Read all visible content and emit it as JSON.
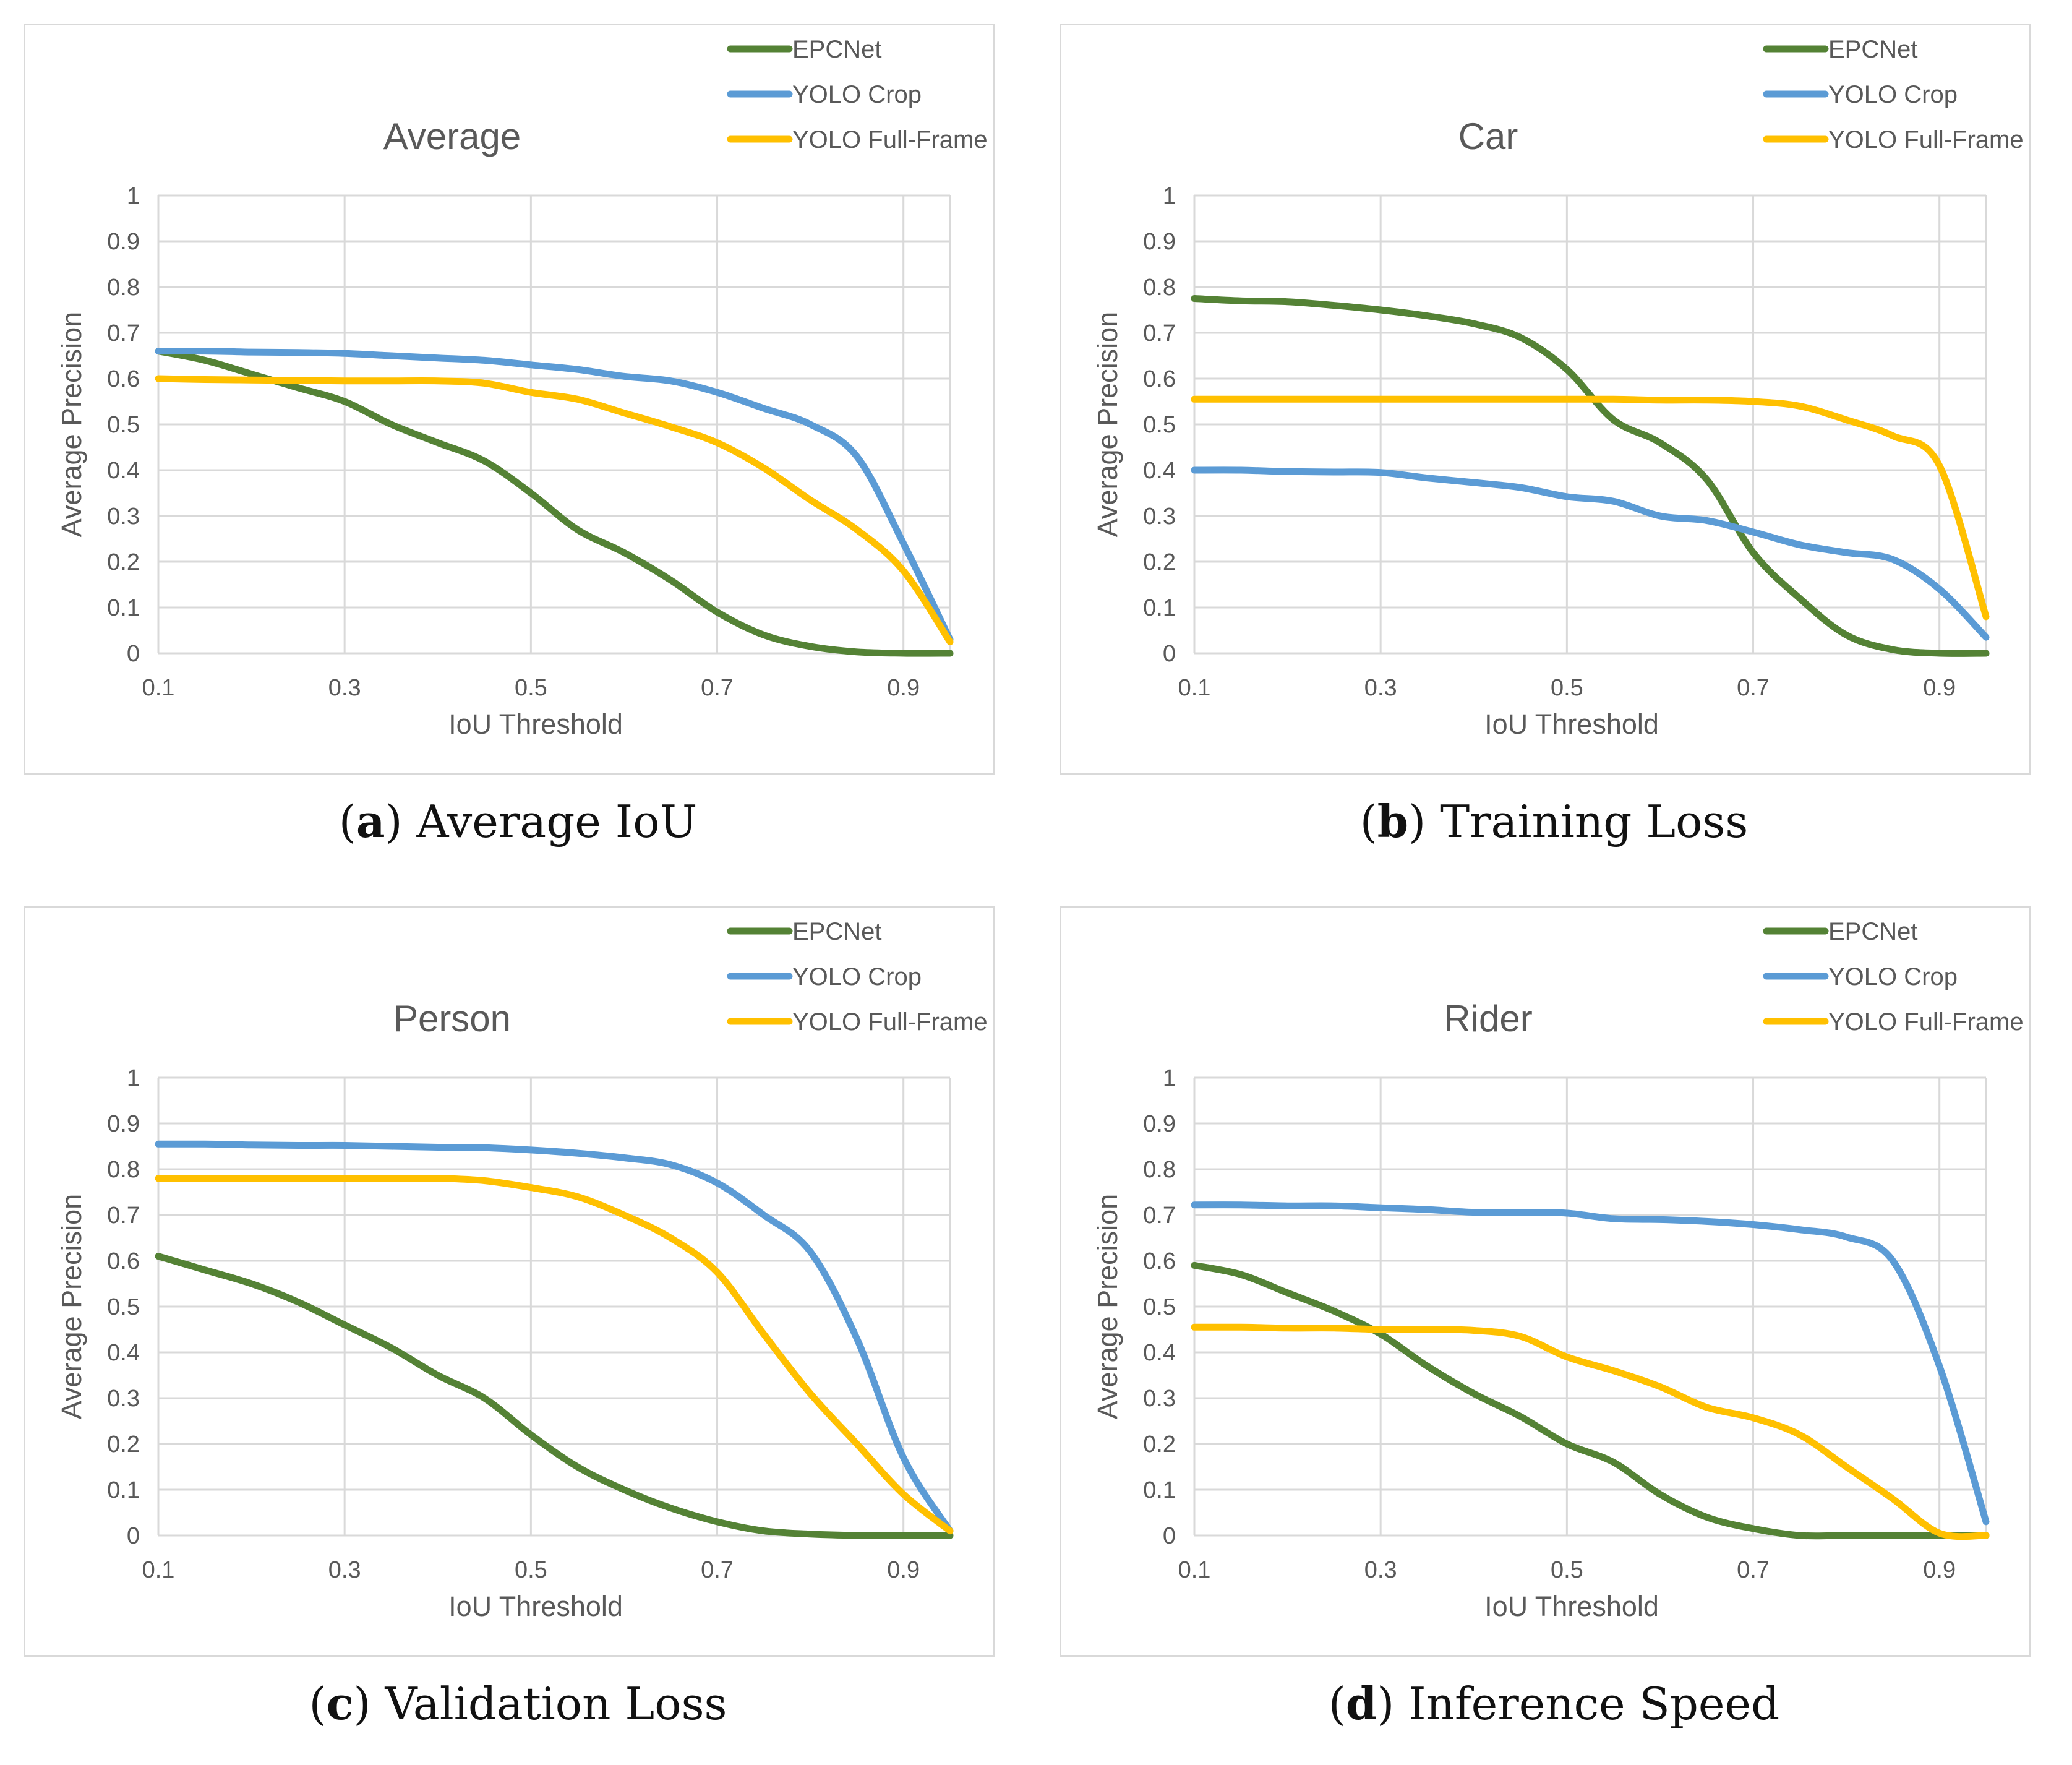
{
  "colors": {
    "EPCNet": "#548235",
    "YOLO Crop": "#5b9bd5",
    "YOLO Full-Frame": "#ffc000",
    "grid": "#d9d9d9",
    "text": "#595959"
  },
  "panels": [
    {
      "letter": "a",
      "caption": "Average IoU"
    },
    {
      "letter": "b",
      "caption": "Training Loss"
    },
    {
      "letter": "c",
      "caption": "Validation Loss"
    },
    {
      "letter": "d",
      "caption": "Inference Speed"
    }
  ],
  "chart_data": [
    {
      "type": "line",
      "title": "Average",
      "xlabel": "IoU Threshold",
      "ylabel": "Average Precision",
      "xlim": [
        0.1,
        0.95
      ],
      "ylim": [
        0,
        1
      ],
      "xticks": [
        "0.1",
        "0.3",
        "0.5",
        "0.7",
        "0.9"
      ],
      "yticks": [
        "0",
        "0.1",
        "0.2",
        "0.3",
        "0.4",
        "0.5",
        "0.6",
        "0.7",
        "0.8",
        "0.9",
        "1"
      ],
      "legend": "top-right",
      "x": [
        0.1,
        0.15,
        0.2,
        0.25,
        0.3,
        0.35,
        0.4,
        0.45,
        0.5,
        0.55,
        0.6,
        0.65,
        0.7,
        0.75,
        0.8,
        0.85,
        0.9,
        0.95
      ],
      "series": [
        {
          "name": "EPCNet",
          "values": [
            0.66,
            0.64,
            0.61,
            0.58,
            0.55,
            0.5,
            0.46,
            0.42,
            0.35,
            0.27,
            0.22,
            0.16,
            0.09,
            0.04,
            0.015,
            0.003,
            0.0,
            0.0
          ]
        },
        {
          "name": "YOLO Crop",
          "values": [
            0.66,
            0.66,
            0.658,
            0.657,
            0.655,
            0.65,
            0.645,
            0.64,
            0.63,
            0.62,
            0.605,
            0.595,
            0.57,
            0.535,
            0.5,
            0.43,
            0.24,
            0.03
          ]
        },
        {
          "name": "YOLO Full-Frame",
          "values": [
            0.6,
            0.598,
            0.597,
            0.596,
            0.595,
            0.595,
            0.595,
            0.59,
            0.57,
            0.555,
            0.525,
            0.495,
            0.46,
            0.405,
            0.335,
            0.27,
            0.18,
            0.025
          ]
        }
      ]
    },
    {
      "type": "line",
      "title": "Car",
      "xlabel": "IoU Threshold",
      "ylabel": "Average Precision",
      "xlim": [
        0.1,
        0.95
      ],
      "ylim": [
        0,
        1
      ],
      "xticks": [
        "0.1",
        "0.3",
        "0.5",
        "0.7",
        "0.9"
      ],
      "yticks": [
        "0",
        "0.1",
        "0.2",
        "0.3",
        "0.4",
        "0.5",
        "0.6",
        "0.7",
        "0.8",
        "0.9",
        "1"
      ],
      "legend": "top-right",
      "x": [
        0.1,
        0.15,
        0.2,
        0.25,
        0.3,
        0.35,
        0.4,
        0.45,
        0.5,
        0.55,
        0.6,
        0.65,
        0.7,
        0.75,
        0.8,
        0.85,
        0.9,
        0.95
      ],
      "series": [
        {
          "name": "EPCNet",
          "values": [
            0.775,
            0.77,
            0.768,
            0.76,
            0.75,
            0.737,
            0.72,
            0.69,
            0.62,
            0.51,
            0.46,
            0.38,
            0.22,
            0.12,
            0.04,
            0.008,
            0.0,
            0.0
          ]
        },
        {
          "name": "YOLO Crop",
          "values": [
            0.4,
            0.4,
            0.397,
            0.396,
            0.395,
            0.383,
            0.373,
            0.362,
            0.342,
            0.332,
            0.3,
            0.29,
            0.265,
            0.237,
            0.22,
            0.205,
            0.14,
            0.035
          ]
        },
        {
          "name": "YOLO Full-Frame",
          "values": [
            0.555,
            0.555,
            0.555,
            0.555,
            0.555,
            0.555,
            0.555,
            0.555,
            0.555,
            0.555,
            0.553,
            0.553,
            0.55,
            0.54,
            0.51,
            0.475,
            0.41,
            0.08
          ]
        }
      ]
    },
    {
      "type": "line",
      "title": "Person",
      "xlabel": "IoU Threshold",
      "ylabel": "Average Precision",
      "xlim": [
        0.1,
        0.95
      ],
      "ylim": [
        0,
        1
      ],
      "xticks": [
        "0.1",
        "0.3",
        "0.5",
        "0.7",
        "0.9"
      ],
      "yticks": [
        "0",
        "0.1",
        "0.2",
        "0.3",
        "0.4",
        "0.5",
        "0.6",
        "0.7",
        "0.8",
        "0.9",
        "1"
      ],
      "legend": "top-right",
      "x": [
        0.1,
        0.15,
        0.2,
        0.25,
        0.3,
        0.35,
        0.4,
        0.45,
        0.5,
        0.55,
        0.6,
        0.65,
        0.7,
        0.75,
        0.8,
        0.85,
        0.9,
        0.95
      ],
      "series": [
        {
          "name": "EPCNet",
          "values": [
            0.61,
            0.58,
            0.55,
            0.51,
            0.46,
            0.41,
            0.35,
            0.3,
            0.22,
            0.15,
            0.1,
            0.06,
            0.03,
            0.01,
            0.003,
            0.0,
            0.0,
            0.0
          ]
        },
        {
          "name": "YOLO Crop",
          "values": [
            0.855,
            0.855,
            0.853,
            0.852,
            0.852,
            0.85,
            0.848,
            0.847,
            0.842,
            0.835,
            0.825,
            0.81,
            0.77,
            0.7,
            0.62,
            0.43,
            0.17,
            0.01
          ]
        },
        {
          "name": "YOLO Full-Frame",
          "values": [
            0.78,
            0.78,
            0.78,
            0.78,
            0.78,
            0.78,
            0.78,
            0.775,
            0.76,
            0.74,
            0.7,
            0.65,
            0.575,
            0.44,
            0.31,
            0.2,
            0.09,
            0.01
          ]
        }
      ]
    },
    {
      "type": "line",
      "title": "Rider",
      "xlabel": "IoU Threshold",
      "ylabel": "Average Precision",
      "xlim": [
        0.1,
        0.95
      ],
      "ylim": [
        0,
        1
      ],
      "xticks": [
        "0.1",
        "0.3",
        "0.5",
        "0.7",
        "0.9"
      ],
      "yticks": [
        "0",
        "0.1",
        "0.2",
        "0.3",
        "0.4",
        "0.5",
        "0.6",
        "0.7",
        "0.8",
        "0.9",
        "1"
      ],
      "legend": "top-right",
      "x": [
        0.1,
        0.15,
        0.2,
        0.25,
        0.3,
        0.35,
        0.4,
        0.45,
        0.5,
        0.55,
        0.6,
        0.65,
        0.7,
        0.75,
        0.8,
        0.85,
        0.9,
        0.95
      ],
      "series": [
        {
          "name": "EPCNet",
          "values": [
            0.59,
            0.57,
            0.53,
            0.49,
            0.44,
            0.37,
            0.31,
            0.26,
            0.2,
            0.16,
            0.09,
            0.04,
            0.015,
            0.0,
            0.0,
            0.0,
            0.0,
            0.0
          ]
        },
        {
          "name": "YOLO Crop",
          "values": [
            0.722,
            0.722,
            0.72,
            0.72,
            0.716,
            0.712,
            0.706,
            0.706,
            0.704,
            0.692,
            0.69,
            0.686,
            0.679,
            0.668,
            0.652,
            0.6,
            0.37,
            0.03
          ]
        },
        {
          "name": "YOLO Full-Frame",
          "values": [
            0.455,
            0.455,
            0.453,
            0.453,
            0.45,
            0.45,
            0.448,
            0.435,
            0.39,
            0.36,
            0.325,
            0.28,
            0.257,
            0.22,
            0.15,
            0.08,
            0.005,
            0.0
          ]
        }
      ]
    }
  ]
}
